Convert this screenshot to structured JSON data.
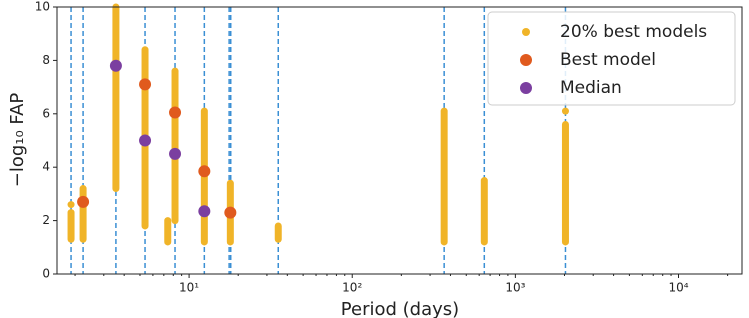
{
  "chart_data": {
    "type": "scatter",
    "xlabel": "Period (days)",
    "ylabel": "−log₁₀ FAP",
    "xscale": "log",
    "xlim": [
      1.55,
      24500
    ],
    "ylim": [
      0,
      10
    ],
    "xticks": [
      {
        "value": 10,
        "label": "10¹"
      },
      {
        "value": 100,
        "label": "10²"
      },
      {
        "value": 1000,
        "label": "10³"
      },
      {
        "value": 10000,
        "label": "10⁴"
      }
    ],
    "yticks": [
      0,
      2,
      4,
      6,
      8,
      10
    ],
    "legend": "upper right",
    "vlines": {
      "color": "#3a8fd4",
      "x": [
        1.89,
        2.24,
        3.56,
        5.37,
        8.2,
        12.4,
        17.6,
        18.0,
        35.2,
        366,
        645,
        2028
      ]
    },
    "series": [
      {
        "name": "20% best models",
        "color": "#f0b428",
        "x": [
          1.89,
          1.89,
          2.24,
          3.56,
          5.37,
          7.4,
          8.2,
          12.4,
          17.9,
          35.2,
          366,
          645,
          2028,
          2028
        ],
        "low": [
          1.3,
          2.6,
          1.3,
          3.2,
          1.8,
          1.2,
          2.0,
          1.2,
          1.2,
          1.3,
          1.2,
          1.2,
          1.2,
          6.1
        ],
        "high": [
          2.3,
          2.6,
          3.2,
          10,
          8.4,
          2.0,
          7.6,
          6.1,
          3.4,
          1.8,
          6.1,
          3.5,
          5.6,
          6.1
        ]
      },
      {
        "name": "Best model",
        "color": "#e05a1e",
        "x": [
          2.24,
          5.37,
          8.2,
          12.4,
          17.9
        ],
        "y": [
          2.7,
          7.1,
          6.05,
          3.85,
          2.3
        ]
      },
      {
        "name": "Median",
        "color": "#7b3fa0",
        "x": [
          3.56,
          5.37,
          8.2,
          12.4
        ],
        "y": [
          7.8,
          5.0,
          4.5,
          2.35
        ]
      }
    ]
  }
}
